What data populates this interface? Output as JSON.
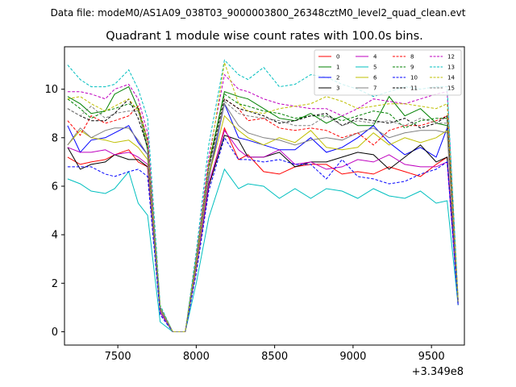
{
  "chart_data": {
    "type": "line",
    "suptitle": "Data file: modeM0/AS1A09_038T03_9000003800_26348cztM0_level2_quad_clean.evt",
    "title": "Quadrant 1 module wise count rates with 100.0s bins.",
    "xlabel": "",
    "ylabel": "",
    "x_offset_label": "+3.349e8",
    "xlim": [
      7160,
      9710
    ],
    "ylim": [
      -0.55,
      11.75
    ],
    "x_ticks": [
      7500,
      8000,
      8500,
      9000,
      9500
    ],
    "y_ticks": [
      0,
      2,
      4,
      6,
      8,
      10
    ],
    "x": [
      7180,
      7260,
      7330,
      7420,
      7480,
      7570,
      7630,
      7690,
      7770,
      7850,
      7930,
      8000,
      8080,
      8180,
      8270,
      8330,
      8430,
      8530,
      8630,
      8730,
      8830,
      8930,
      9030,
      9130,
      9230,
      9330,
      9430,
      9530,
      9600,
      9670
    ],
    "legend_location": "top-right",
    "series": [
      {
        "name": "0",
        "color": "#ff0000",
        "dash": false,
        "values": [
          7.2,
          6.9,
          7.0,
          7.1,
          7.3,
          7.5,
          7.0,
          6.8,
          0.9,
          0.0,
          0.0,
          2.8,
          6.0,
          8.4,
          7.1,
          7.3,
          6.6,
          6.5,
          6.8,
          6.9,
          6.9,
          6.5,
          6.6,
          6.5,
          6.8,
          6.6,
          6.4,
          6.9,
          7.2,
          1.2
        ]
      },
      {
        "name": "1",
        "color": "#008000",
        "dash": false,
        "values": [
          9.7,
          9.4,
          9.0,
          9.1,
          9.8,
          10.1,
          9.2,
          7.5,
          1.0,
          0.0,
          0.0,
          3.0,
          6.9,
          9.9,
          9.7,
          9.6,
          9.2,
          8.8,
          8.7,
          9.0,
          8.6,
          8.9,
          8.5,
          8.5,
          9.7,
          8.9,
          9.2,
          8.6,
          8.5,
          1.3
        ]
      },
      {
        "name": "2",
        "color": "#0000ff",
        "dash": false,
        "values": [
          8.5,
          7.4,
          7.9,
          8.0,
          8.2,
          8.5,
          7.8,
          7.3,
          0.9,
          0.0,
          0.0,
          2.7,
          6.3,
          9.4,
          8.0,
          7.9,
          7.7,
          7.5,
          7.5,
          8.0,
          7.4,
          7.6,
          8.0,
          8.5,
          7.8,
          7.3,
          7.6,
          7.2,
          8.4,
          1.2
        ]
      },
      {
        "name": "3",
        "color": "#000000",
        "dash": false,
        "values": [
          7.6,
          6.7,
          6.9,
          7.0,
          7.3,
          7.1,
          7.1,
          6.8,
          0.8,
          0.0,
          0.0,
          2.6,
          6.0,
          8.1,
          7.9,
          7.2,
          7.2,
          7.4,
          6.8,
          7.0,
          7.0,
          7.2,
          7.4,
          7.3,
          6.7,
          7.2,
          7.7,
          7.0,
          7.2,
          1.1
        ]
      },
      {
        "name": "4",
        "color": "#bf00bf",
        "dash": false,
        "values": [
          7.6,
          7.4,
          7.4,
          7.5,
          7.3,
          7.4,
          7.2,
          6.9,
          0.8,
          0.0,
          0.0,
          2.6,
          6.1,
          8.3,
          7.5,
          7.2,
          7.2,
          7.5,
          6.9,
          7.0,
          6.7,
          6.8,
          7.1,
          7.0,
          7.3,
          6.9,
          6.8,
          6.8,
          7.0,
          1.1
        ]
      },
      {
        "name": "5",
        "color": "#00bfbf",
        "dash": false,
        "values": [
          6.3,
          6.1,
          5.8,
          5.7,
          5.9,
          6.6,
          5.3,
          4.8,
          0.4,
          0.0,
          0.0,
          2.0,
          4.7,
          6.7,
          5.9,
          6.1,
          6.0,
          5.5,
          5.9,
          5.5,
          5.9,
          5.8,
          5.5,
          5.9,
          5.6,
          5.5,
          5.8,
          5.3,
          5.4,
          1.1
        ]
      },
      {
        "name": "6",
        "color": "#bfbf00",
        "dash": false,
        "values": [
          7.7,
          8.3,
          8.0,
          7.9,
          7.8,
          7.9,
          7.6,
          7.1,
          0.9,
          0.0,
          0.0,
          2.7,
          6.4,
          8.9,
          8.3,
          8.0,
          7.7,
          8.0,
          7.8,
          8.3,
          7.6,
          7.5,
          7.6,
          8.2,
          7.7,
          8.0,
          7.8,
          8.0,
          8.3,
          1.2
        ]
      },
      {
        "name": "7",
        "color": "#808080",
        "dash": false,
        "values": [
          7.7,
          8.4,
          8.0,
          8.3,
          8.4,
          8.4,
          7.9,
          7.3,
          0.9,
          0.0,
          0.0,
          2.8,
          6.5,
          9.4,
          8.5,
          8.2,
          8.0,
          7.9,
          7.7,
          7.9,
          8.0,
          7.9,
          8.2,
          8.4,
          8.0,
          8.2,
          8.3,
          8.3,
          8.2,
          1.2
        ]
      },
      {
        "name": "8",
        "color": "#ff0000",
        "dash": true,
        "values": [
          8.7,
          8.1,
          8.9,
          8.6,
          8.7,
          8.9,
          9.3,
          7.9,
          1.0,
          0.0,
          0.0,
          2.9,
          6.8,
          9.6,
          9.2,
          8.7,
          8.8,
          8.4,
          8.3,
          8.4,
          8.3,
          8.0,
          8.2,
          7.7,
          8.3,
          8.5,
          8.5,
          8.7,
          8.9,
          1.3
        ]
      },
      {
        "name": "9",
        "color": "#008000",
        "dash": true,
        "values": [
          9.6,
          9.2,
          8.8,
          9.1,
          9.2,
          9.4,
          9.2,
          7.9,
          1.0,
          0.0,
          0.0,
          3.0,
          6.9,
          9.8,
          9.4,
          9.3,
          9.1,
          9.0,
          8.8,
          8.9,
          8.9,
          8.7,
          8.9,
          9.1,
          9.0,
          8.4,
          8.7,
          8.8,
          8.8,
          1.3
        ]
      },
      {
        "name": "10",
        "color": "#0000ff",
        "dash": true,
        "values": [
          6.8,
          6.8,
          6.8,
          6.5,
          6.4,
          6.6,
          6.7,
          6.4,
          0.7,
          0.0,
          0.0,
          2.4,
          5.8,
          8.0,
          7.1,
          7.1,
          7.0,
          7.1,
          6.9,
          6.9,
          6.3,
          7.1,
          6.4,
          6.3,
          6.1,
          6.2,
          6.5,
          6.7,
          7.0,
          1.1
        ]
      },
      {
        "name": "11",
        "color": "#000000",
        "dash": true,
        "values": [
          9.2,
          8.9,
          8.7,
          8.7,
          9.0,
          9.6,
          8.8,
          7.6,
          1.0,
          0.0,
          0.0,
          2.9,
          6.8,
          9.6,
          9.2,
          9.1,
          8.9,
          8.6,
          8.7,
          8.9,
          9.0,
          8.5,
          8.8,
          8.7,
          8.6,
          8.8,
          8.4,
          8.6,
          8.9,
          1.3
        ]
      },
      {
        "name": "12",
        "color": "#bf00bf",
        "dash": true,
        "values": [
          9.9,
          9.9,
          9.8,
          9.6,
          10.0,
          10.2,
          9.6,
          8.2,
          1.0,
          0.0,
          0.0,
          3.1,
          7.2,
          10.6,
          10.0,
          9.9,
          9.6,
          9.4,
          9.3,
          9.2,
          9.2,
          8.9,
          9.2,
          9.6,
          9.5,
          9.4,
          9.6,
          9.8,
          9.9,
          1.3
        ]
      },
      {
        "name": "13",
        "color": "#00bfbf",
        "dash": true,
        "values": [
          11.0,
          10.4,
          10.1,
          10.1,
          10.2,
          10.8,
          10.0,
          8.8,
          1.1,
          0.0,
          0.0,
          3.3,
          7.7,
          11.2,
          10.6,
          10.4,
          10.9,
          10.1,
          10.2,
          10.6,
          10.5,
          10.2,
          10.0,
          9.7,
          9.9,
          10.1,
          10.0,
          10.1,
          10.1,
          1.4
        ]
      },
      {
        "name": "14",
        "color": "#bfbf00",
        "dash": true,
        "values": [
          9.6,
          9.7,
          9.4,
          9.1,
          9.3,
          9.6,
          9.1,
          7.8,
          1.0,
          0.0,
          0.0,
          3.0,
          6.9,
          11.1,
          9.4,
          9.1,
          9.0,
          9.2,
          9.3,
          9.4,
          9.7,
          9.5,
          9.2,
          9.3,
          9.4,
          9.4,
          9.3,
          9.2,
          9.4,
          1.3
        ]
      },
      {
        "name": "15",
        "color": "#808080",
        "dash": true,
        "values": [
          9.2,
          8.9,
          9.3,
          8.8,
          9.0,
          9.1,
          9.1,
          7.7,
          1.0,
          0.0,
          0.0,
          2.9,
          6.7,
          9.5,
          9.0,
          8.9,
          8.8,
          8.7,
          8.5,
          8.5,
          8.9,
          8.5,
          8.7,
          8.6,
          8.7,
          8.5,
          8.8,
          8.6,
          8.6,
          1.3
        ]
      }
    ]
  }
}
